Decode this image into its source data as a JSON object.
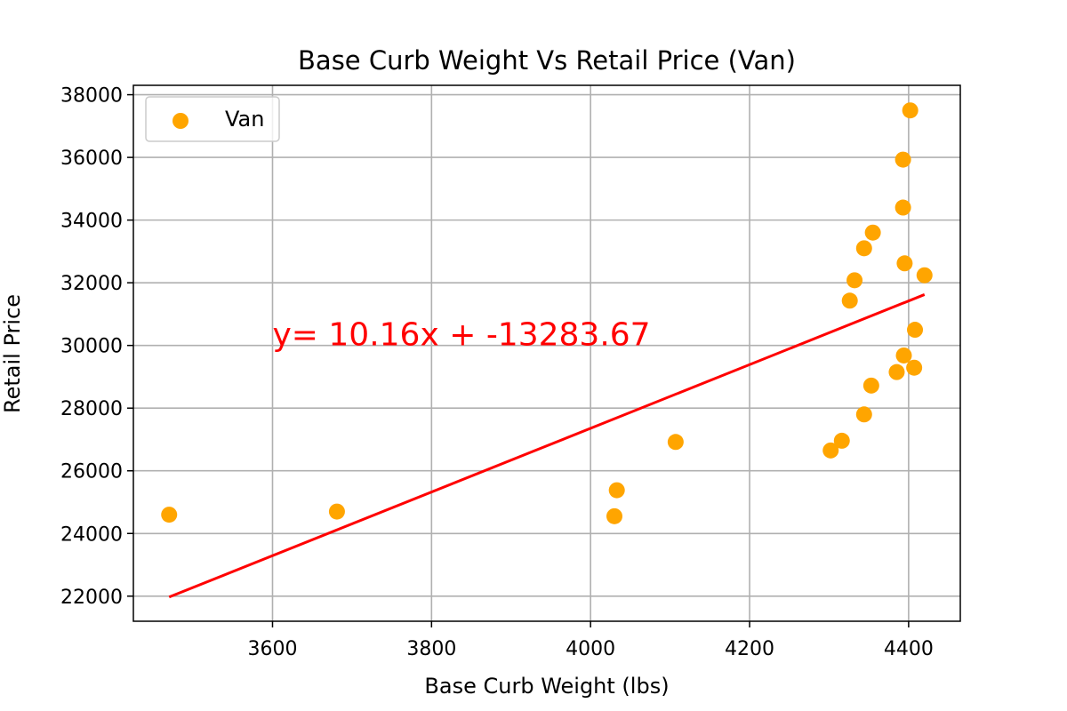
{
  "chart_data": {
    "type": "scatter",
    "title": "Base Curb Weight Vs Retail Price (Van)",
    "xlabel": "Base Curb Weight (lbs)",
    "ylabel": "Retail Price",
    "xlim": [
      3425,
      4465
    ],
    "ylim": [
      21200,
      38300
    ],
    "xticks": [
      3600,
      3800,
      4000,
      4200,
      4400
    ],
    "yticks": [
      22000,
      24000,
      26000,
      28000,
      30000,
      32000,
      34000,
      36000,
      38000
    ],
    "grid": true,
    "legend_position": "top-left",
    "series": [
      {
        "name": "Van",
        "color": "#ffa500",
        "x": [
          3470,
          3681,
          4030,
          4033,
          4107,
          4302,
          4316,
          4326,
          4332,
          4344,
          4344,
          4353,
          4355,
          4385,
          4393,
          4393,
          4394,
          4395,
          4402,
          4407,
          4408,
          4420
        ],
        "y": [
          24600,
          24700,
          24550,
          25380,
          26920,
          26650,
          26960,
          31430,
          32080,
          33100,
          27800,
          28720,
          33600,
          29150,
          34400,
          35930,
          29680,
          32620,
          37500,
          29290,
          30500,
          32240
        ]
      }
    ],
    "regression": {
      "color": "#ff0000",
      "slope": 10.16,
      "intercept": -13283.67,
      "x_range": [
        3470,
        4420
      ],
      "equation_text": "y= 10.16x + -13283.67",
      "label_anchor": [
        3600,
        30000
      ]
    }
  }
}
